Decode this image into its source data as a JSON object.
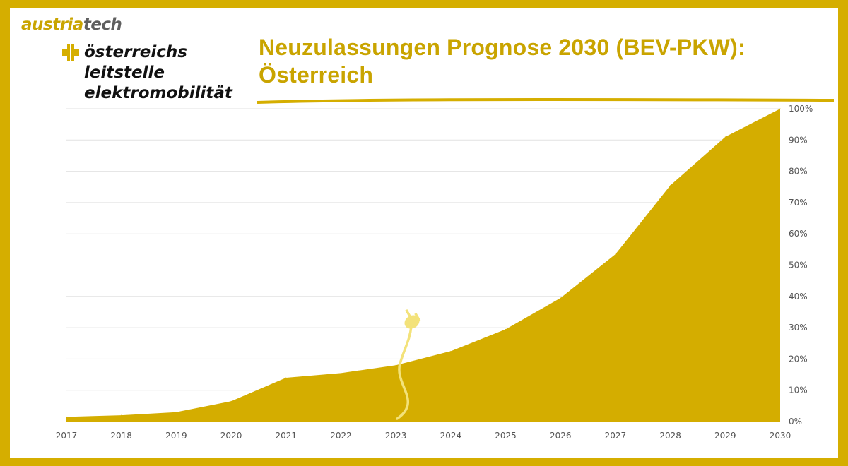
{
  "branding": {
    "company_part1": "austria",
    "company_part2": "tech",
    "leitstelle_lines": [
      "österreichs",
      "leitstelle",
      "elektromobilität"
    ],
    "icon": "plus-cross-logo-icon"
  },
  "colors": {
    "accent": "#d5ae00",
    "area_fill": "#d4ad00",
    "title": "#c9a400",
    "grid": "#e2e2e2",
    "plug": "#f3e27a"
  },
  "decorations": {
    "plug_icon": "power-plug-icon"
  },
  "chart_data": {
    "type": "area",
    "title_lines": [
      "Neuzulassungen Prognose 2030 (BEV-PKW):",
      "Österreich"
    ],
    "xlabel": "",
    "ylabel": "",
    "x": [
      "2017",
      "2018",
      "2019",
      "2020",
      "2021",
      "2022",
      "2023",
      "2024",
      "2025",
      "2026",
      "2027",
      "2028",
      "2029",
      "2030"
    ],
    "series": [
      {
        "values": [
          1.5,
          2,
          3,
          6.5,
          14,
          15.5,
          18,
          22.5,
          29.5,
          39.5,
          53.5,
          75.5,
          91,
          100
        ]
      }
    ],
    "ylim": [
      0,
      100
    ],
    "y_ticks": [
      0,
      10,
      20,
      30,
      40,
      50,
      60,
      70,
      80,
      90,
      100
    ],
    "y_unit": "%",
    "y_axis_position": "right",
    "grid": true,
    "legend": "none"
  }
}
